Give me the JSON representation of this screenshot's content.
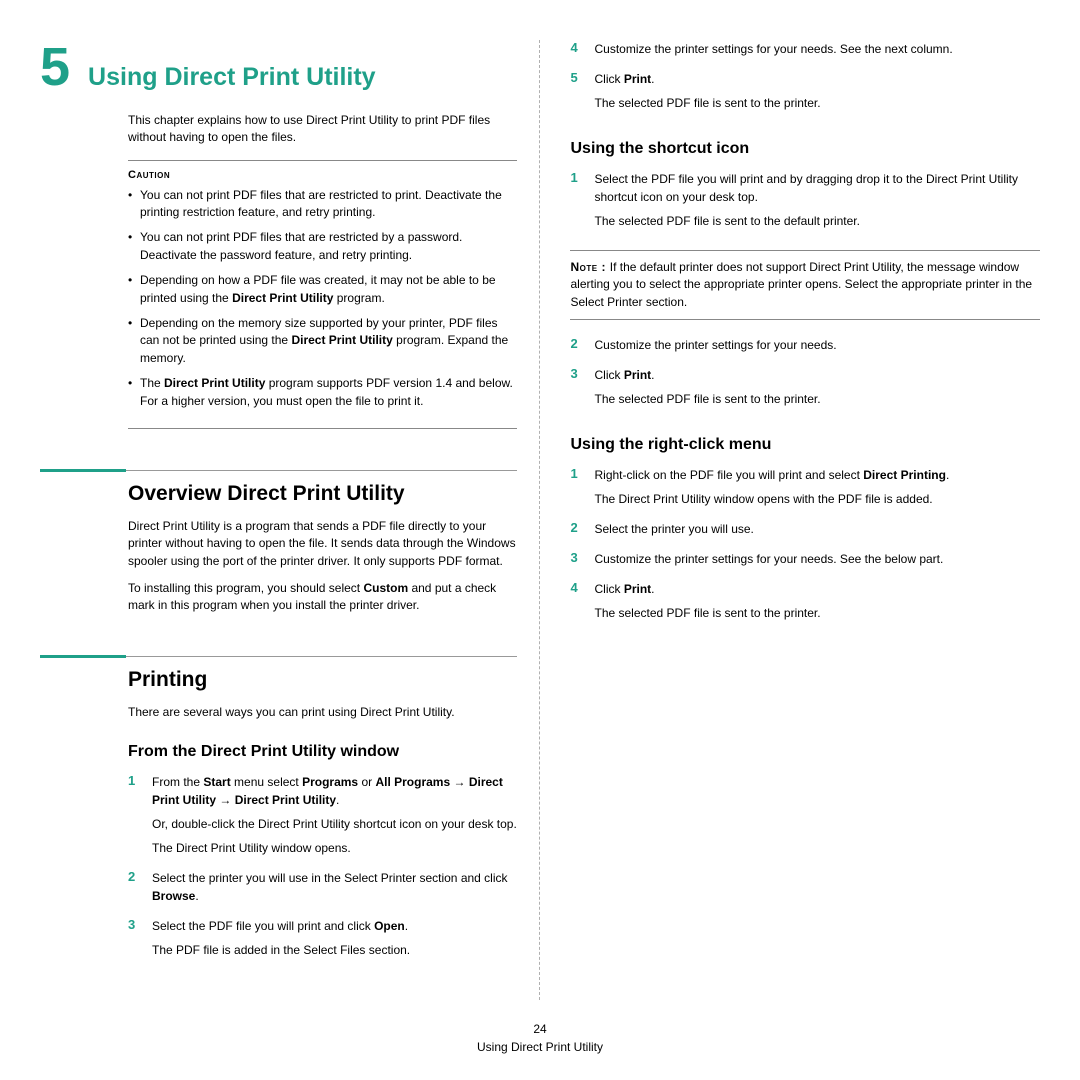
{
  "colors": {
    "accent": "#1fa089",
    "text": "#000000",
    "rule": "#999999",
    "divider": "#b0b0b0",
    "bg": "#ffffff"
  },
  "typography": {
    "body_pt": 12,
    "h1_pt": 21,
    "h2_pt": 16,
    "chapter_num_pt": 54,
    "chapter_title_pt": 25,
    "font_family": "Verdana"
  },
  "chapter": {
    "number": "5",
    "title": "Using Direct Print Utility"
  },
  "intro": "This chapter explains how to use Direct Print Utility to print PDF files without having to open the files.",
  "caution": {
    "label": "Caution",
    "items": [
      "You can not print PDF files that are restricted to print. Deactivate the printing restriction feature, and retry printing.",
      "You can not print PDF files that are restricted by a password. Deactivate the password feature, and retry printing.",
      "Depending on how a PDF file was created, it may not be able to be printed using the <b>Direct Print Utility</b> program.",
      "Depending on the memory size supported by your printer, PDF files can not be printed using the <b>Direct Print Utility</b> program. Expand the memory.",
      "The <b>Direct Print Utility</b> program supports PDF version 1.4 and below. For a higher version, you must open the file to print it."
    ]
  },
  "overview": {
    "heading": "Overview Direct Print Utility",
    "p1": "Direct Print Utility is a program that sends a PDF file directly to your printer without having to open the file. It sends data through the Windows spooler using the port of the printer driver. It only supports PDF format.",
    "p2": "To installing this program, you should select <b>Custom</b> and put a check mark in this program when you install the printer driver."
  },
  "printing": {
    "heading": "Printing",
    "intro": "There are several ways you can print using Direct Print Utility.",
    "from_window": {
      "heading": "From the Direct Print Utility window",
      "steps": [
        {
          "n": "1",
          "html": "<p>From the <b>Start</b> menu select <b>Programs</b> or <b>All Programs</b> → <b>Direct Print Utility</b> → <b>Direct Print Utility</b>.</p><p>Or, double-click the Direct Print Utility shortcut icon on your desk top.</p><p>The Direct Print Utility window opens.</p>"
        },
        {
          "n": "2",
          "html": "<p>Select the printer you will use in the Select Printer section and click <b>Browse</b>.</p>"
        },
        {
          "n": "3",
          "html": "<p>Select the PDF file you will print and click <b>Open</b>.</p><p>The PDF file is added in the Select Files section.</p>"
        }
      ]
    }
  },
  "right_col": {
    "cont_steps": [
      {
        "n": "4",
        "html": "<p>Customize the printer settings for your needs. See the next column.</p>"
      },
      {
        "n": "5",
        "html": "<p>Click <b>Print</b>.</p><p>The selected PDF file is sent to the printer.</p>"
      }
    ],
    "shortcut": {
      "heading": "Using the shortcut icon",
      "steps1": [
        {
          "n": "1",
          "html": "<p>Select the PDF file you will print and by dragging drop it to the Direct Print Utility shortcut icon on your desk top.</p><p>The selected PDF file is sent to the default printer.</p>"
        }
      ],
      "note_label": "Note",
      "note": "If the default printer does not support Direct Print Utility, the message window alerting you to select the appropriate printer opens. Select the appropriate printer in the Select Printer section.",
      "steps2": [
        {
          "n": "2",
          "html": "<p>Customize the printer settings for your needs.</p>"
        },
        {
          "n": "3",
          "html": "<p>Click <b>Print</b>.</p><p>The selected PDF file is sent to the printer.</p>"
        }
      ]
    },
    "rightclick": {
      "heading": "Using the right-click menu",
      "steps": [
        {
          "n": "1",
          "html": "<p>Right-click on the PDF file you will print and select <b>Direct Printing</b>.</p><p>The Direct Print Utility window opens with the PDF file is added.</p>"
        },
        {
          "n": "2",
          "html": "<p>Select the printer you will use.</p>"
        },
        {
          "n": "3",
          "html": "<p>Customize the printer settings for your needs. See the below part.</p>"
        },
        {
          "n": "4",
          "html": "<p>Click <b>Print</b>.</p><p>The selected PDF file is sent to the printer.</p>"
        }
      ]
    }
  },
  "footer": {
    "page_num": "24",
    "running": "Using Direct Print Utility"
  }
}
